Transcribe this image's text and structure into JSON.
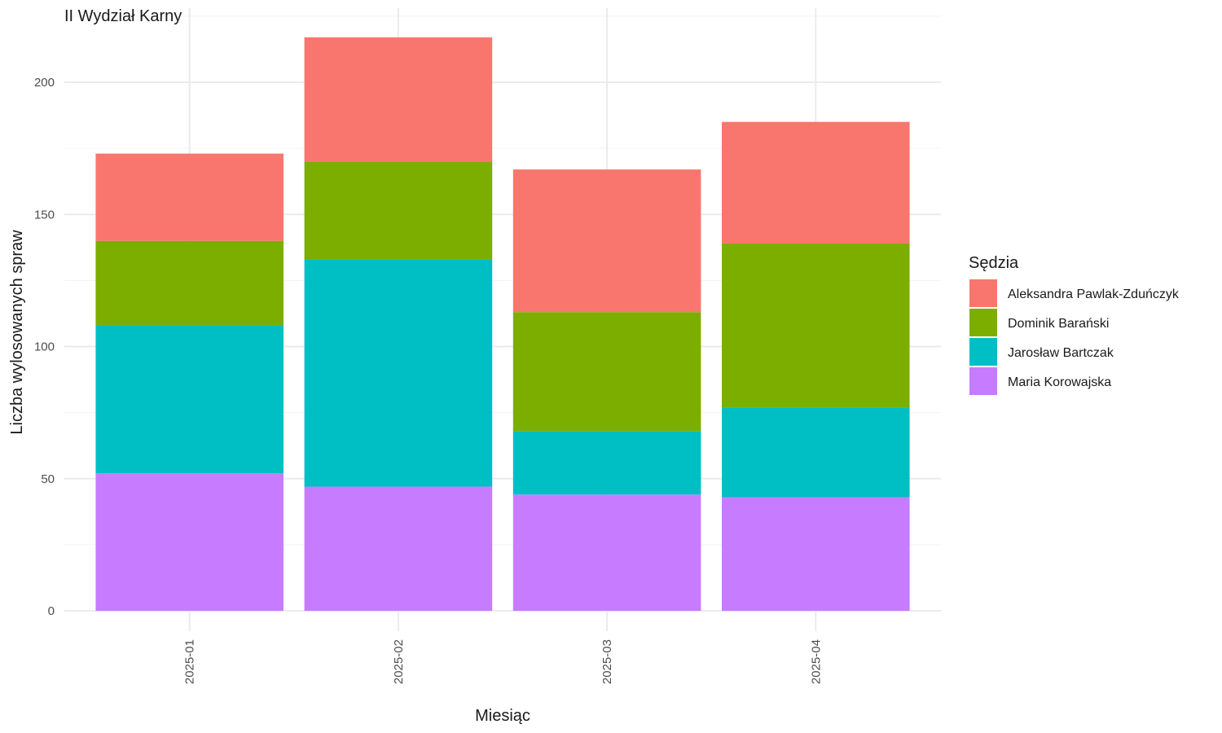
{
  "chart_data": {
    "type": "bar",
    "stacked": true,
    "title": "II Wydział Karny",
    "xlabel": "Miesiąc",
    "ylabel": "Liczba wylosowanych spraw",
    "categories": [
      "2025-01",
      "2025-02",
      "2025-03",
      "2025-04"
    ],
    "ylim": [
      0,
      220
    ],
    "yticks": [
      0,
      50,
      100,
      150,
      200
    ],
    "grid": true,
    "legend": {
      "title": "Sędzia",
      "position": "right"
    },
    "series": [
      {
        "name": "Maria Korowajska",
        "color": "#C77CFF",
        "values": [
          52,
          47,
          44,
          43
        ]
      },
      {
        "name": "Jarosław Bartczak",
        "color": "#00BFC4",
        "values": [
          56,
          86,
          24,
          34
        ]
      },
      {
        "name": "Dominik Barański",
        "color": "#7CAE00",
        "values": [
          32,
          37,
          45,
          62
        ]
      },
      {
        "name": "Aleksandra Pawlak-Zduńczyk",
        "color": "#F8766D",
        "values": [
          33,
          47,
          54,
          46
        ]
      }
    ],
    "legend_order": [
      "Aleksandra Pawlak-Zduńczyk",
      "Dominik Barański",
      "Jarosław Bartczak",
      "Maria Korowajska"
    ]
  }
}
